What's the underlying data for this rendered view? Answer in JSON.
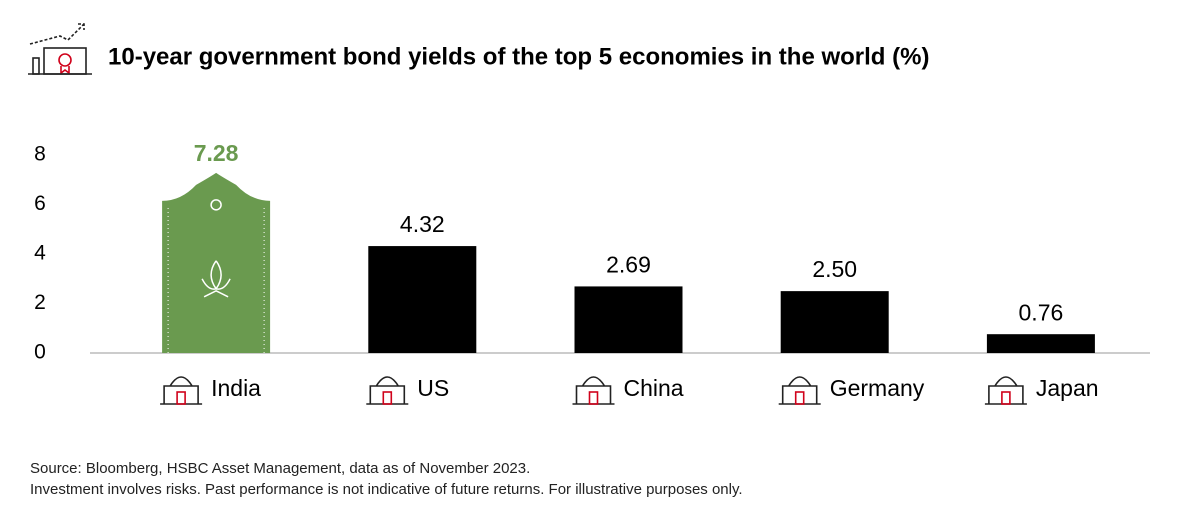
{
  "chart_data": {
    "type": "bar",
    "title": "10-year government bond yields of the top 5 economies in the world (%)",
    "categories": [
      "India",
      "US",
      "China",
      "Germany",
      "Japan"
    ],
    "values": [
      7.28,
      4.32,
      2.69,
      2.5,
      0.76
    ],
    "value_labels": [
      "7.28",
      "4.32",
      "2.69",
      "2.50",
      "0.76"
    ],
    "colors": [
      "#6a9a4f",
      "#000000",
      "#000000",
      "#000000",
      "#000000"
    ],
    "ylim": [
      0,
      8
    ],
    "yticks": [
      0,
      2,
      4,
      6,
      8
    ],
    "grid": false,
    "footnotes": [
      "Source: Bloomberg, HSBC Asset Management, data as of November 2023.",
      "Investment involves risks. Past performance is not indicative of future returns. For illustrative purposes only."
    ]
  }
}
